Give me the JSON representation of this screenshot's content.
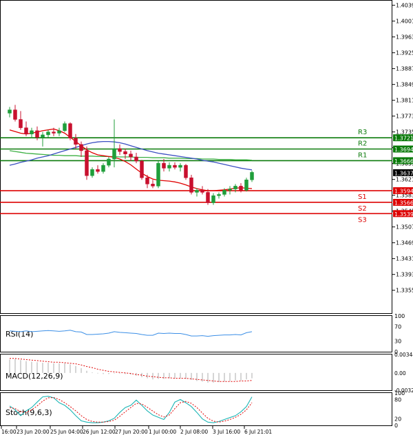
{
  "chart_data": {
    "type": "candlestick",
    "main": {
      "ylim": [
        1.33,
        1.405
      ],
      "y_ticks": [
        "1.40390",
        "1.40010",
        "1.39630",
        "1.39250",
        "1.38870",
        "1.38490",
        "1.38110",
        "1.37730",
        "1.37350",
        "1.36970",
        "1.36590",
        "1.36210",
        "1.35830",
        "1.35450",
        "1.35070",
        "1.34690",
        "1.34310",
        "1.33930",
        "1.33550"
      ],
      "current_price": "1.36372",
      "levels": [
        {
          "name": "R3",
          "label": "1.37210",
          "value": 1.3721,
          "color": "#0a7a0a"
        },
        {
          "name": "R2",
          "label": "1.36940",
          "value": 1.3694,
          "color": "#0a7a0a"
        },
        {
          "name": "R1",
          "label": "1.36660",
          "value": 1.3666,
          "color": "#0a7a0a"
        },
        {
          "name": "S1",
          "label": "1.35940",
          "value": 1.3594,
          "color": "#dd0000"
        },
        {
          "name": "S2",
          "label": "1.35660",
          "value": 1.3566,
          "color": "#dd0000"
        },
        {
          "name": "S3",
          "label": "1.35390",
          "value": 1.3539,
          "color": "#dd0000"
        }
      ],
      "x_labels": [
        "16:00",
        "23 Jun 20:00",
        "25 Jun 04:00",
        "26 Jun 12:00",
        "27 Jun 20:00",
        "1 Jul 00:00",
        "2 Jul 08:00",
        "3 Jul 16:00",
        "6 Jul 21:01"
      ],
      "candles": [
        [
          1.378,
          1.3795,
          1.377,
          1.3788
        ],
        [
          1.3788,
          1.38,
          1.376,
          1.3765
        ],
        [
          1.3765,
          1.3785,
          1.374,
          1.3745
        ],
        [
          1.3745,
          1.376,
          1.3725,
          1.373
        ],
        [
          1.373,
          1.3745,
          1.372,
          1.3738
        ],
        [
          1.3738,
          1.3748,
          1.3715,
          1.3722
        ],
        [
          1.3722,
          1.3735,
          1.37,
          1.3728
        ],
        [
          1.3728,
          1.374,
          1.3722,
          1.3735
        ],
        [
          1.3735,
          1.3745,
          1.3725,
          1.3732
        ],
        [
          1.3732,
          1.3745,
          1.3725,
          1.3738
        ],
        [
          1.3738,
          1.376,
          1.3735,
          1.3755
        ],
        [
          1.3755,
          1.3758,
          1.3715,
          1.372
        ],
        [
          1.372,
          1.373,
          1.3695,
          1.3705
        ],
        [
          1.3705,
          1.3712,
          1.3675,
          1.369
        ],
        [
          1.369,
          1.37,
          1.362,
          1.363
        ],
        [
          1.363,
          1.365,
          1.3625,
          1.3645
        ],
        [
          1.3645,
          1.3655,
          1.3635,
          1.364
        ],
        [
          1.364,
          1.366,
          1.3635,
          1.3655
        ],
        [
          1.3655,
          1.3675,
          1.365,
          1.367
        ],
        [
          1.367,
          1.3765,
          1.365,
          1.3695
        ],
        [
          1.3695,
          1.3705,
          1.368,
          1.3688
        ],
        [
          1.3688,
          1.3695,
          1.367,
          1.3682
        ],
        [
          1.3682,
          1.369,
          1.3665,
          1.3675
        ],
        [
          1.3675,
          1.3685,
          1.366,
          1.3665
        ],
        [
          1.3665,
          1.3668,
          1.362,
          1.3625
        ],
        [
          1.3625,
          1.3632,
          1.36,
          1.361
        ],
        [
          1.361,
          1.362,
          1.36,
          1.3605
        ],
        [
          1.3605,
          1.3665,
          1.36,
          1.366
        ],
        [
          1.366,
          1.367,
          1.364,
          1.3648
        ],
        [
          1.3648,
          1.3662,
          1.364,
          1.3655
        ],
        [
          1.3655,
          1.3662,
          1.3645,
          1.365
        ],
        [
          1.365,
          1.366,
          1.364,
          1.3655
        ],
        [
          1.3655,
          1.3658,
          1.362,
          1.3625
        ],
        [
          1.3625,
          1.3632,
          1.3585,
          1.359
        ],
        [
          1.359,
          1.36,
          1.358,
          1.3595
        ],
        [
          1.3595,
          1.3605,
          1.3585,
          1.359
        ],
        [
          1.359,
          1.3598,
          1.356,
          1.3565
        ],
        [
          1.3565,
          1.3588,
          1.356,
          1.3582
        ],
        [
          1.3582,
          1.359,
          1.3575,
          1.3585
        ],
        [
          1.3585,
          1.36,
          1.358,
          1.3595
        ],
        [
          1.3595,
          1.3605,
          1.3585,
          1.3598
        ],
        [
          1.3598,
          1.361,
          1.359,
          1.3605
        ],
        [
          1.3605,
          1.3612,
          1.359,
          1.3595
        ],
        [
          1.3595,
          1.3625,
          1.3592,
          1.362
        ],
        [
          1.362,
          1.3642,
          1.3615,
          1.3638
        ]
      ],
      "ma_red": [
        1.374,
        1.3736,
        1.3732,
        1.373,
        1.3732,
        1.3735,
        1.3738,
        1.374,
        1.3742,
        1.3738,
        1.3732,
        1.3722,
        1.3712,
        1.3702,
        1.3692,
        1.3685,
        1.368,
        1.3678,
        1.3676,
        1.3674,
        1.367,
        1.3664,
        1.3656,
        1.3646,
        1.3636,
        1.3628,
        1.3622,
        1.3619,
        1.3618,
        1.3617,
        1.3615,
        1.3612,
        1.3608,
        1.3603,
        1.3599,
        1.3596,
        1.3594,
        1.3594,
        1.3595,
        1.3596,
        1.3598,
        1.36,
        1.3601,
        1.36,
        1.3599
      ],
      "ma_blue": [
        1.3655,
        1.3658,
        1.3662,
        1.3665,
        1.3668,
        1.3672,
        1.3675,
        1.3678,
        1.3682,
        1.3686,
        1.369,
        1.3694,
        1.3698,
        1.3702,
        1.3706,
        1.3709,
        1.3711,
        1.3712,
        1.3712,
        1.3711,
        1.3709,
        1.3706,
        1.3702,
        1.3698,
        1.3694,
        1.369,
        1.3687,
        1.3684,
        1.3682,
        1.368,
        1.3678,
        1.3676,
        1.3674,
        1.3672,
        1.367,
        1.3667,
        1.3665,
        1.3663,
        1.366,
        1.3657,
        1.3654,
        1.3651,
        1.3648,
        1.3646,
        1.3644
      ],
      "ma_green": [
        1.369,
        1.3688,
        1.3686,
        1.3684,
        1.3683,
        1.3682,
        1.3681,
        1.368,
        1.3679,
        1.3679,
        1.3678,
        1.3678,
        1.3678,
        1.3677,
        1.3677,
        1.3677,
        1.3676,
        1.3676,
        1.3676,
        1.3676,
        1.3675,
        1.3675,
        1.3675,
        1.3674,
        1.3674,
        1.3674,
        1.3673,
        1.3673,
        1.3673,
        1.3672,
        1.3672,
        1.3672,
        1.3671,
        1.3671,
        1.3671,
        1.367,
        1.367,
        1.367,
        1.3669,
        1.3669,
        1.3669,
        1.3668,
        1.3668,
        1.3668,
        1.3667
      ]
    },
    "rsi": {
      "name": "RSI(14)",
      "ticks": [
        "100",
        "70",
        "30",
        "0"
      ],
      "values": [
        58,
        57,
        56,
        58,
        56,
        57,
        58,
        59,
        58,
        57,
        58,
        60,
        56,
        55,
        48,
        48,
        49,
        50,
        52,
        56,
        54,
        53,
        52,
        51,
        48,
        46,
        46,
        52,
        51,
        52,
        51,
        51,
        48,
        44,
        44,
        45,
        43,
        45,
        46,
        47,
        47,
        48,
        47,
        53,
        56
      ]
    },
    "macd": {
      "name": "MACD(12,26,9)",
      "ticks": [
        "0.003447",
        "0.00",
        "-0.00323"
      ],
      "histogram": [
        0.0025,
        0.0026,
        0.0024,
        0.0022,
        0.0021,
        0.002,
        0.0019,
        0.0019,
        0.0018,
        0.0018,
        0.0018,
        0.0016,
        0.0013,
        0.0009,
        0.0004,
        0.0001,
        -0.0001,
        -0.0002,
        -0.0002,
        -0.0001,
        -0.0001,
        -0.0002,
        -0.0003,
        -0.0005,
        -0.0008,
        -0.001,
        -0.0012,
        -0.0011,
        -0.0011,
        -0.001,
        -0.001,
        -0.001,
        -0.0011,
        -0.0013,
        -0.0015,
        -0.0016,
        -0.0018,
        -0.0018,
        -0.0017,
        -0.0016,
        -0.0015,
        -0.0014,
        -0.0014,
        -0.0012,
        -0.001
      ],
      "signal": [
        0.0027,
        0.0027,
        0.0026,
        0.0025,
        0.0024,
        0.0023,
        0.0022,
        0.0021,
        0.002,
        0.002,
        0.0019,
        0.0018,
        0.0017,
        0.0015,
        0.0012,
        0.001,
        0.0007,
        0.0005,
        0.0003,
        0.0002,
        0.0001,
        0.0,
        -0.0001,
        -0.0003,
        -0.0004,
        -0.0006,
        -0.0007,
        -0.0008,
        -0.0009,
        -0.0009,
        -0.001,
        -0.001,
        -0.001,
        -0.0011,
        -0.0012,
        -0.0013,
        -0.0014,
        -0.0015,
        -0.0016,
        -0.0016,
        -0.0016,
        -0.0016,
        -0.0015,
        -0.0015,
        -0.0014
      ]
    },
    "stoch": {
      "name": "Stoch(9,6,3)",
      "ticks": [
        "100",
        "80",
        "20",
        "0"
      ],
      "main": [
        60,
        48,
        30,
        45,
        55,
        72,
        88,
        90,
        85,
        70,
        62,
        48,
        30,
        14,
        10,
        8,
        8,
        10,
        14,
        22,
        40,
        55,
        62,
        78,
        62,
        45,
        32,
        25,
        18,
        40,
        72,
        80,
        70,
        58,
        40,
        20,
        10,
        8,
        12,
        18,
        24,
        30,
        42,
        58,
        88
      ],
      "signal": [
        55,
        52,
        42,
        40,
        48,
        60,
        75,
        85,
        86,
        80,
        70,
        58,
        45,
        30,
        18,
        12,
        10,
        10,
        12,
        16,
        28,
        42,
        55,
        68,
        66,
        56,
        44,
        33,
        26,
        32,
        52,
        70,
        74,
        68,
        55,
        38,
        22,
        13,
        10,
        13,
        18,
        25,
        34,
        48,
        70
      ]
    }
  }
}
